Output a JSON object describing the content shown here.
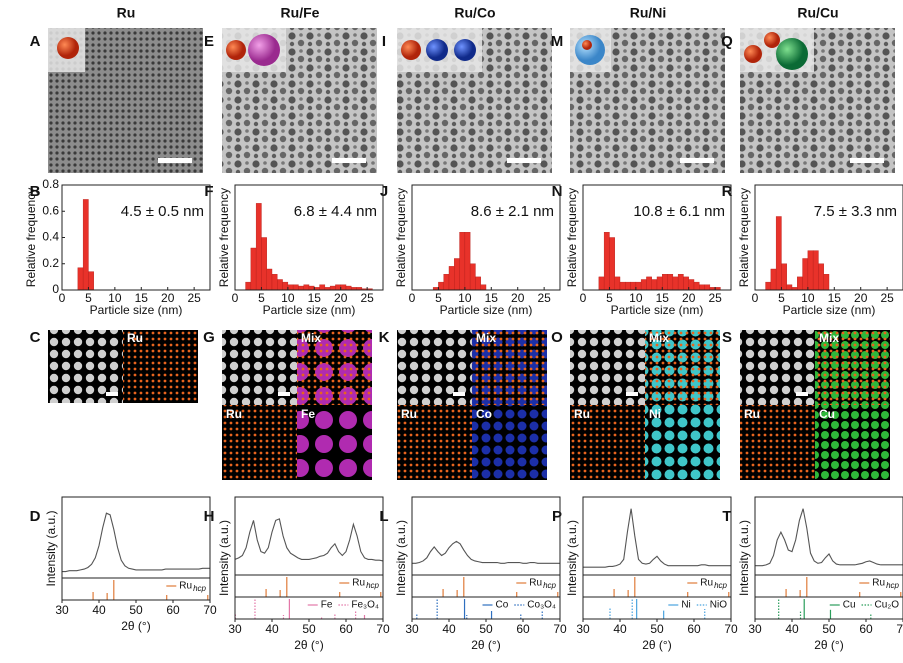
{
  "columns": [
    {
      "title": "Ru"
    },
    {
      "title": "Ru/Fe"
    },
    {
      "title": "Ru/Co"
    },
    {
      "title": "Ru/Ni"
    },
    {
      "title": "Ru/Cu"
    }
  ],
  "panel_labels": [
    [
      "A",
      "B",
      "C",
      "D"
    ],
    [
      "E",
      "F",
      "G",
      "H"
    ],
    [
      "I",
      "J",
      "K",
      "L"
    ],
    [
      "M",
      "N",
      "O",
      "P"
    ],
    [
      "Q",
      "R",
      "S",
      "T"
    ]
  ],
  "maps": [
    [
      "Ru"
    ],
    [
      "Mix",
      "Ru",
      "Fe"
    ],
    [
      "Mix",
      "Ru",
      "Co"
    ],
    [
      "Mix",
      "Ru",
      "Ni"
    ],
    [
      "Mix",
      "Ru",
      "Cu"
    ]
  ],
  "chart_data": [
    {
      "type": "histogram",
      "annotation": "4.5 ± 0.5 nm",
      "xlabel": "Particle size (nm)",
      "ylabel": "Relative frequency",
      "color": "#e8322a",
      "xlim": [
        0,
        28
      ],
      "xticks": [
        0,
        5,
        10,
        15,
        20,
        25
      ],
      "ylim": [
        0,
        0.8
      ],
      "yticks": [
        0,
        0.2,
        0.4,
        0.6,
        0.8
      ],
      "bins": [
        3,
        4,
        5,
        6
      ],
      "values": [
        0.17,
        0.69,
        0.14
      ]
    },
    {
      "type": "histogram",
      "annotation": "6.8 ± 4.4 nm",
      "xlabel": "Particle size (nm)",
      "ylabel": "Relative frequency",
      "color": "#e8322a",
      "xlim": [
        0,
        28
      ],
      "xticks": [
        0,
        5,
        10,
        15,
        20,
        25
      ],
      "ylim": [
        0,
        0.4
      ],
      "bins": [
        2,
        3,
        4,
        5,
        6,
        7,
        8,
        9,
        10,
        11,
        12,
        13,
        14,
        15,
        16,
        17,
        18,
        19,
        20,
        21,
        22,
        23,
        24,
        25,
        26
      ],
      "values": [
        0.03,
        0.16,
        0.33,
        0.2,
        0.08,
        0.06,
        0.04,
        0.03,
        0.02,
        0.02,
        0.015,
        0.02,
        0.015,
        0.01,
        0.02,
        0.01,
        0.015,
        0.02,
        0.02,
        0.015,
        0.01,
        0.01,
        0.005,
        0.005
      ]
    },
    {
      "type": "histogram",
      "annotation": "8.6 ± 2.1 nm",
      "xlabel": "Particle size (nm)",
      "ylabel": "Relative frequency",
      "color": "#e8322a",
      "xlim": [
        0,
        28
      ],
      "xticks": [
        0,
        5,
        10,
        15,
        20,
        25
      ],
      "ylim": [
        0,
        0.4
      ],
      "bins": [
        4,
        5,
        6,
        7,
        8,
        9,
        10,
        11,
        12,
        13,
        14
      ],
      "values": [
        0.01,
        0.03,
        0.06,
        0.09,
        0.12,
        0.22,
        0.22,
        0.1,
        0.05,
        0.02
      ]
    },
    {
      "type": "histogram",
      "annotation": "10.8 ± 6.1 nm",
      "xlabel": "Particle size (nm)",
      "ylabel": "Relative frequency",
      "color": "#e8322a",
      "xlim": [
        0,
        28
      ],
      "xticks": [
        0,
        5,
        10,
        15,
        20,
        25
      ],
      "ylim": [
        0,
        0.4
      ],
      "bins": [
        3,
        4,
        5,
        6,
        7,
        8,
        9,
        10,
        11,
        12,
        13,
        14,
        15,
        16,
        17,
        18,
        19,
        20,
        21,
        22,
        23,
        24,
        25,
        26
      ],
      "values": [
        0.05,
        0.22,
        0.2,
        0.05,
        0.03,
        0.03,
        0.03,
        0.03,
        0.04,
        0.05,
        0.04,
        0.05,
        0.06,
        0.06,
        0.05,
        0.06,
        0.05,
        0.04,
        0.03,
        0.02,
        0.02,
        0.01,
        0.01
      ]
    },
    {
      "type": "histogram",
      "annotation": "7.5 ± 3.3 nm",
      "xlabel": "Particle size (nm)",
      "ylabel": "Relative frequency",
      "color": "#e8322a",
      "xlim": [
        0,
        28
      ],
      "xticks": [
        0,
        5,
        10,
        15,
        20,
        25
      ],
      "ylim": [
        0,
        0.4
      ],
      "bins": [
        2,
        3,
        4,
        5,
        6,
        7,
        8,
        9,
        10,
        11,
        12,
        13,
        14
      ],
      "values": [
        0.03,
        0.08,
        0.28,
        0.1,
        0.02,
        0.01,
        0.05,
        0.12,
        0.15,
        0.15,
        0.1,
        0.06
      ]
    },
    {
      "type": "xrd",
      "xlabel": "2θ (°)",
      "ylabel": "Intensity (a.u.)",
      "color": "#555555",
      "xlim": [
        30,
        70
      ],
      "xticks": [
        30,
        40,
        50,
        60,
        70
      ],
      "ylim": [
        0,
        1
      ],
      "ref_ylim": [
        0,
        100
      ],
      "x": [
        30,
        31,
        32,
        33,
        34,
        35,
        36,
        37,
        38,
        39,
        40,
        41,
        42,
        43,
        44,
        45,
        46,
        47,
        48,
        49,
        50,
        51,
        52,
        53,
        54,
        55,
        56,
        57,
        58,
        59,
        60,
        61,
        62,
        63,
        64,
        65,
        66,
        67,
        68,
        69,
        70
      ],
      "values": [
        0.08,
        0.08,
        0.09,
        0.09,
        0.09,
        0.1,
        0.11,
        0.13,
        0.17,
        0.25,
        0.4,
        0.62,
        0.8,
        0.78,
        0.6,
        0.38,
        0.22,
        0.15,
        0.12,
        0.11,
        0.1,
        0.1,
        0.1,
        0.1,
        0.1,
        0.1,
        0.1,
        0.1,
        0.11,
        0.11,
        0.11,
        0.11,
        0.11,
        0.11,
        0.11,
        0.11,
        0.11,
        0.11,
        0.12,
        0.12,
        0.12
      ],
      "reference_panels": [
        [
          {
            "name": "Ru",
            "subscript": "hcp",
            "color": "#e07b39",
            "style": "solid",
            "positions": [
              38.4,
              42.2,
              44.0,
              58.3,
              69.4
            ],
            "heights": [
              40,
              35,
              100,
              25,
              25
            ]
          }
        ]
      ]
    },
    {
      "type": "xrd",
      "xlabel": "2θ (°)",
      "ylabel": "Intensity (a.u.)",
      "color": "#555555",
      "xlim": [
        30,
        70
      ],
      "xticks": [
        30,
        40,
        50,
        60,
        70
      ],
      "ylim": [
        0,
        1
      ],
      "ref_ylim": [
        0,
        100
      ],
      "x": [
        30,
        31,
        32,
        33,
        34,
        35,
        36,
        37,
        38,
        39,
        40,
        41,
        42,
        43,
        44,
        45,
        46,
        47,
        48,
        49,
        50,
        51,
        52,
        53,
        54,
        55,
        56,
        57,
        58,
        59,
        60,
        61,
        62,
        63,
        64,
        65,
        66,
        67,
        68,
        69,
        70
      ],
      "values": [
        0.2,
        0.22,
        0.25,
        0.35,
        0.55,
        0.7,
        0.45,
        0.3,
        0.28,
        0.35,
        0.55,
        0.7,
        0.72,
        0.5,
        0.35,
        0.28,
        0.25,
        0.22,
        0.2,
        0.2,
        0.2,
        0.21,
        0.22,
        0.24,
        0.25,
        0.28,
        0.35,
        0.4,
        0.3,
        0.25,
        0.3,
        0.45,
        0.65,
        0.5,
        0.3,
        0.22,
        0.2,
        0.2,
        0.19,
        0.19,
        0.18
      ],
      "reference_panels": [
        [
          {
            "name": "Ru",
            "subscript": "hcp",
            "color": "#e07b39",
            "style": "solid",
            "positions": [
              38.4,
              42.2,
              44.0,
              58.3,
              69.4
            ],
            "heights": [
              40,
              35,
              100,
              25,
              25
            ]
          }
        ],
        [
          {
            "name": "Fe",
            "color": "#e377a8",
            "style": "solid",
            "positions": [
              44.7,
              65.0
            ],
            "heights": [
              100,
              20
            ]
          },
          {
            "name": "Fe₃O₄",
            "color": "#e377a8",
            "style": "dotted",
            "positions": [
              30.1,
              35.4,
              43.1,
              53.4,
              57.0,
              62.6
            ],
            "heights": [
              30,
              100,
              20,
              10,
              30,
              40
            ]
          }
        ]
      ]
    },
    {
      "type": "xrd",
      "xlabel": "2θ (°)",
      "ylabel": "Intensity (a.u.)",
      "color": "#555555",
      "xlim": [
        30,
        70
      ],
      "xticks": [
        30,
        40,
        50,
        60,
        70
      ],
      "ylim": [
        0,
        1
      ],
      "ref_ylim": [
        0,
        100
      ],
      "x": [
        30,
        31,
        32,
        33,
        34,
        35,
        36,
        37,
        38,
        39,
        40,
        41,
        42,
        43,
        44,
        45,
        46,
        47,
        48,
        49,
        50,
        51,
        52,
        53,
        54,
        55,
        56,
        57,
        58,
        59,
        60,
        61,
        62,
        63,
        64,
        65,
        66,
        67,
        68,
        69,
        70
      ],
      "values": [
        0.15,
        0.15,
        0.16,
        0.18,
        0.22,
        0.3,
        0.36,
        0.3,
        0.25,
        0.28,
        0.35,
        0.4,
        0.43,
        0.4,
        0.32,
        0.25,
        0.2,
        0.18,
        0.17,
        0.16,
        0.16,
        0.16,
        0.16,
        0.16,
        0.15,
        0.15,
        0.16,
        0.16,
        0.16,
        0.16,
        0.15,
        0.15,
        0.16,
        0.16,
        0.15,
        0.15,
        0.15,
        0.15,
        0.15,
        0.15,
        0.15
      ],
      "reference_panels": [
        [
          {
            "name": "Ru",
            "subscript": "hcp",
            "color": "#e07b39",
            "style": "solid",
            "positions": [
              38.4,
              42.2,
              44.0,
              58.3,
              69.4
            ],
            "heights": [
              40,
              35,
              100,
              25,
              25
            ]
          }
        ],
        [
          {
            "name": "Co",
            "color": "#2e6fbf",
            "style": "solid",
            "positions": [
              44.2,
              51.5
            ],
            "heights": [
              100,
              40
            ]
          },
          {
            "name": "Co₃O₄",
            "color": "#2e6fbf",
            "style": "dotted",
            "positions": [
              31.3,
              36.8,
              44.8,
              59.4,
              65.2
            ],
            "heights": [
              30,
              100,
              20,
              30,
              40
            ]
          }
        ]
      ]
    },
    {
      "type": "xrd",
      "xlabel": "2θ (°)",
      "ylabel": "Intensity (a.u.)",
      "color": "#555555",
      "xlim": [
        30,
        70
      ],
      "xticks": [
        30,
        40,
        50,
        60,
        70
      ],
      "ylim": [
        0,
        1
      ],
      "ref_ylim": [
        0,
        100
      ],
      "x": [
        30,
        31,
        32,
        33,
        34,
        35,
        36,
        37,
        38,
        39,
        40,
        41,
        42,
        43,
        44,
        45,
        46,
        47,
        48,
        49,
        50,
        51,
        52,
        53,
        54,
        55,
        56,
        57,
        58,
        59,
        60,
        61,
        62,
        63,
        64,
        65,
        66,
        67,
        68,
        69,
        70
      ],
      "values": [
        0.1,
        0.1,
        0.1,
        0.1,
        0.1,
        0.1,
        0.1,
        0.11,
        0.11,
        0.12,
        0.14,
        0.2,
        0.55,
        0.85,
        0.5,
        0.2,
        0.15,
        0.14,
        0.15,
        0.2,
        0.24,
        0.18,
        0.14,
        0.12,
        0.12,
        0.12,
        0.12,
        0.12,
        0.12,
        0.12,
        0.12,
        0.12,
        0.13,
        0.13,
        0.12,
        0.12,
        0.12,
        0.12,
        0.12,
        0.12,
        0.12
      ],
      "reference_panels": [
        [
          {
            "name": "Ru",
            "subscript": "hcp",
            "color": "#e07b39",
            "style": "solid",
            "positions": [
              38.4,
              42.2,
              44.0,
              58.3,
              69.4
            ],
            "heights": [
              40,
              35,
              100,
              25,
              25
            ]
          }
        ],
        [
          {
            "name": "Ni",
            "color": "#4aa3df",
            "style": "solid",
            "positions": [
              44.5,
              51.8
            ],
            "heights": [
              100,
              42
            ]
          },
          {
            "name": "NiO",
            "color": "#4aa3df",
            "style": "dotted",
            "positions": [
              37.3,
              43.3,
              62.9
            ],
            "heights": [
              60,
              100,
              50
            ]
          }
        ]
      ]
    },
    {
      "type": "xrd",
      "xlabel": "2θ (°)",
      "ylabel": "Intensity (a.u.)",
      "color": "#555555",
      "xlim": [
        30,
        70
      ],
      "xticks": [
        30,
        40,
        50,
        60,
        70
      ],
      "ylim": [
        0,
        1
      ],
      "ref_ylim": [
        0,
        100
      ],
      "x": [
        30,
        31,
        32,
        33,
        34,
        35,
        36,
        37,
        38,
        39,
        40,
        41,
        42,
        43,
        44,
        45,
        46,
        47,
        48,
        49,
        50,
        51,
        52,
        53,
        54,
        55,
        56,
        57,
        58,
        59,
        60,
        61,
        62,
        63,
        64,
        65,
        66,
        67,
        68,
        69,
        70
      ],
      "values": [
        0.12,
        0.12,
        0.12,
        0.13,
        0.15,
        0.25,
        0.45,
        0.55,
        0.45,
        0.32,
        0.3,
        0.45,
        0.7,
        0.85,
        0.6,
        0.28,
        0.18,
        0.15,
        0.16,
        0.22,
        0.27,
        0.18,
        0.14,
        0.13,
        0.13,
        0.13,
        0.13,
        0.13,
        0.14,
        0.15,
        0.17,
        0.18,
        0.16,
        0.14,
        0.13,
        0.13,
        0.13,
        0.13,
        0.13,
        0.13,
        0.13
      ],
      "reference_panels": [
        [
          {
            "name": "Ru",
            "subscript": "hcp",
            "color": "#e07b39",
            "style": "solid",
            "positions": [
              38.4,
              42.2,
              44.0,
              58.3,
              69.4
            ],
            "heights": [
              40,
              35,
              100,
              25,
              25
            ]
          }
        ],
        [
          {
            "name": "Cu",
            "color": "#2a9d5b",
            "style": "solid",
            "positions": [
              43.3,
              50.4
            ],
            "heights": [
              100,
              46
            ]
          },
          {
            "name": "Cu₂O",
            "color": "#2a9d5b",
            "style": "dotted",
            "positions": [
              36.4,
              42.3,
              61.3
            ],
            "heights": [
              100,
              37,
              27
            ]
          }
        ]
      ]
    }
  ]
}
